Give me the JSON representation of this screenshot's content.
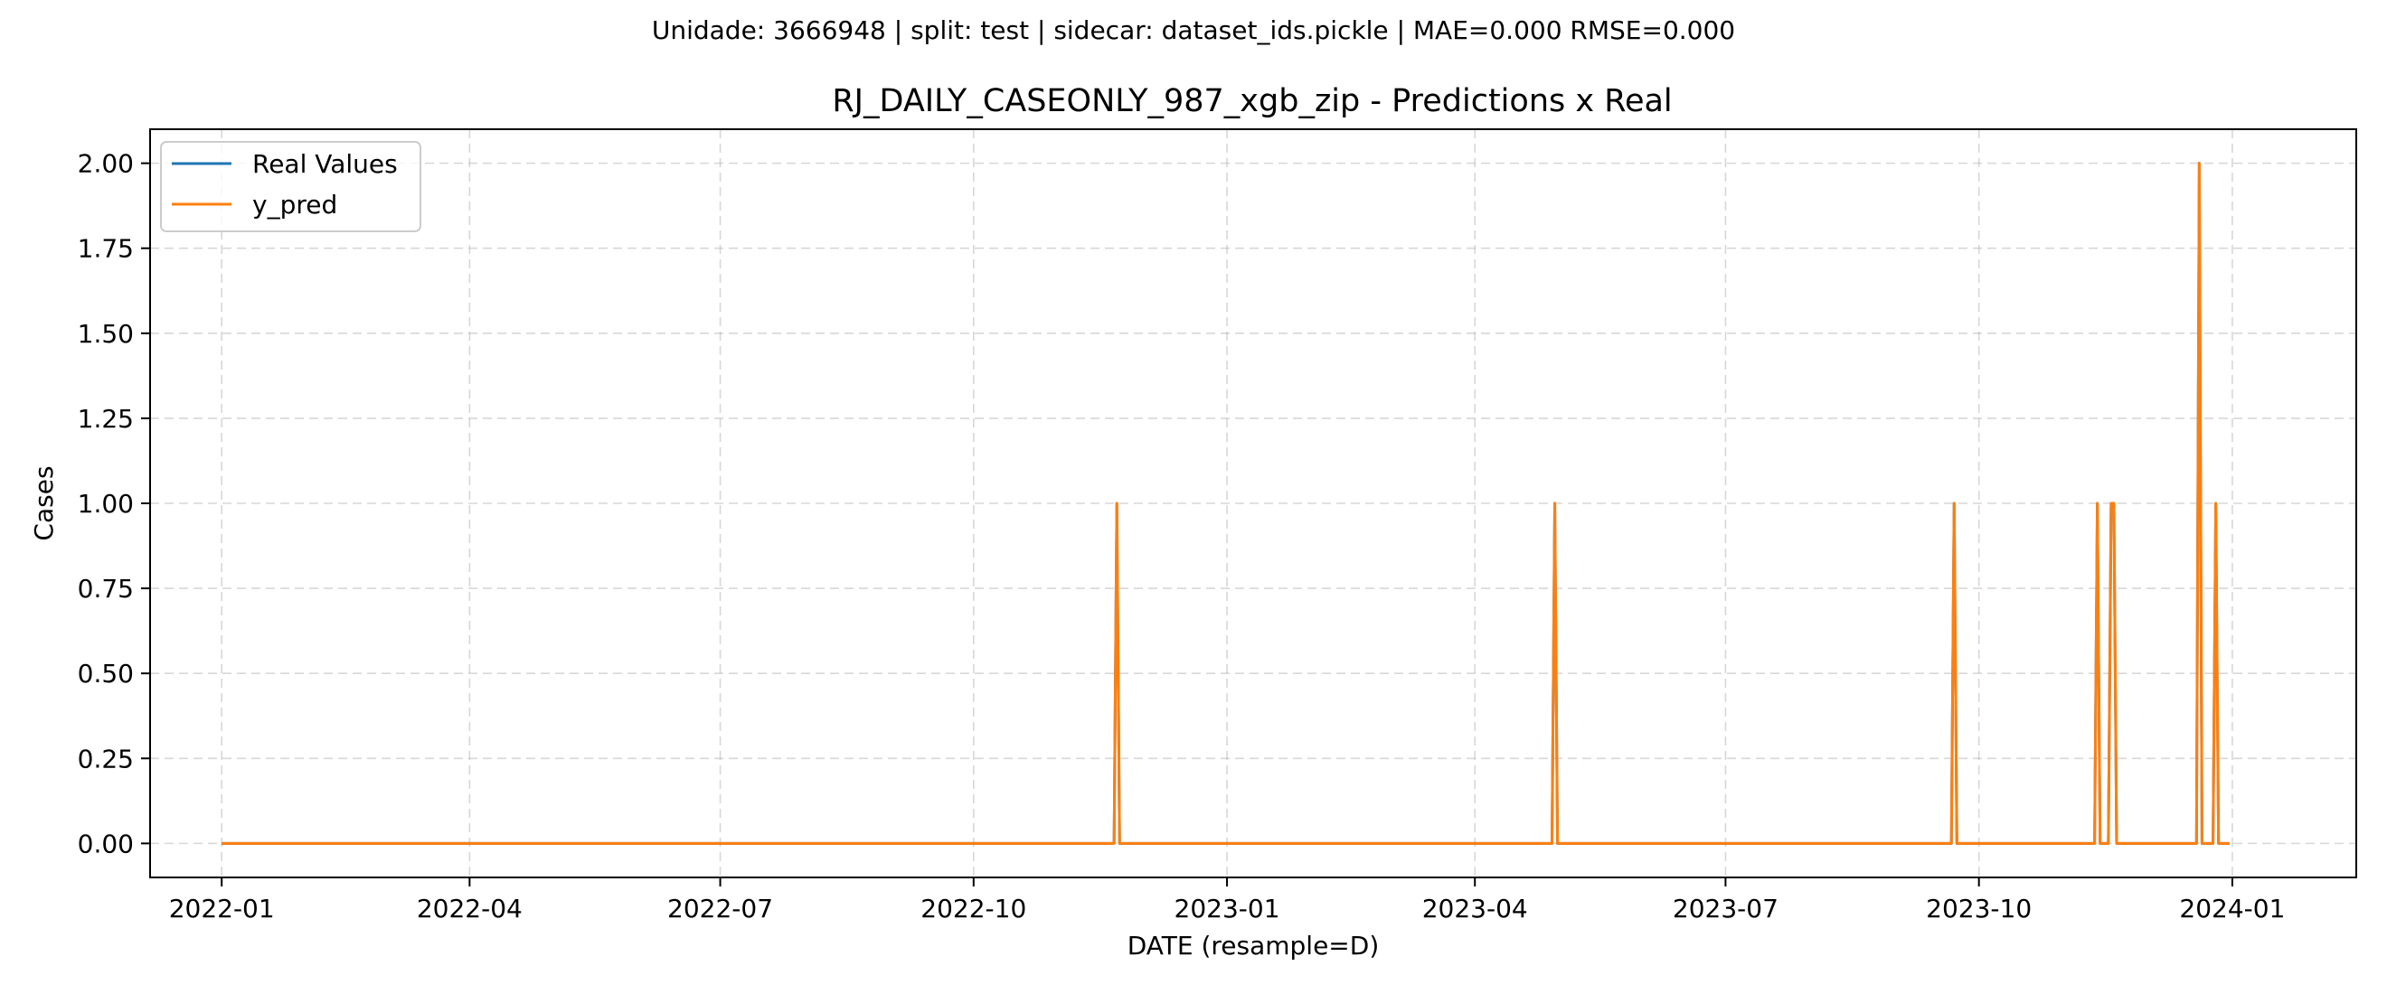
{
  "chart_data": {
    "type": "line",
    "suptitle": "Unidade: 3666948 | split: test | sidecar: dataset_ids.pickle | MAE=0.000  RMSE=0.000",
    "title": "RJ_DAILY_CASEONLY_987_xgb_zip - Predictions x Real",
    "xlabel": "DATE (resample=D)",
    "ylabel": "Cases",
    "xlim": [
      "2021-12-06",
      "2024-02-15"
    ],
    "ylim": [
      -0.1,
      2.1
    ],
    "x_ticks": [
      "2022-01",
      "2022-04",
      "2022-07",
      "2022-10",
      "2023-01",
      "2023-04",
      "2023-07",
      "2023-10",
      "2024-01"
    ],
    "y_ticks": [
      "0.00",
      "0.25",
      "0.50",
      "0.75",
      "1.00",
      "1.25",
      "1.50",
      "1.75",
      "2.00"
    ],
    "grid": true,
    "legend_position": "upper-left",
    "x_range": [
      "2022-01-01",
      "2023-12-31"
    ],
    "baseline": 0,
    "series": [
      {
        "name": "Real Values",
        "color": "#1f77b4",
        "nonzero_points": [
          {
            "x": "2022-11-22",
            "y": 1
          },
          {
            "x": "2023-04-30",
            "y": 1
          },
          {
            "x": "2023-09-22",
            "y": 1
          },
          {
            "x": "2023-11-13",
            "y": 1
          },
          {
            "x": "2023-11-18",
            "y": 1
          },
          {
            "x": "2023-11-19",
            "y": 1
          },
          {
            "x": "2023-12-20",
            "y": 2
          },
          {
            "x": "2023-12-26",
            "y": 1
          }
        ]
      },
      {
        "name": "y_pred",
        "color": "#ff7f0e",
        "nonzero_points": [
          {
            "x": "2022-11-22",
            "y": 1
          },
          {
            "x": "2023-04-30",
            "y": 1
          },
          {
            "x": "2023-09-22",
            "y": 1
          },
          {
            "x": "2023-11-13",
            "y": 1
          },
          {
            "x": "2023-11-18",
            "y": 1
          },
          {
            "x": "2023-11-19",
            "y": 1
          },
          {
            "x": "2023-12-20",
            "y": 2
          },
          {
            "x": "2023-12-26",
            "y": 1
          }
        ]
      }
    ]
  },
  "colors": {
    "real_values": "#1f77b4",
    "y_pred": "#ff7f0e",
    "grid": "#b0b0b0"
  }
}
